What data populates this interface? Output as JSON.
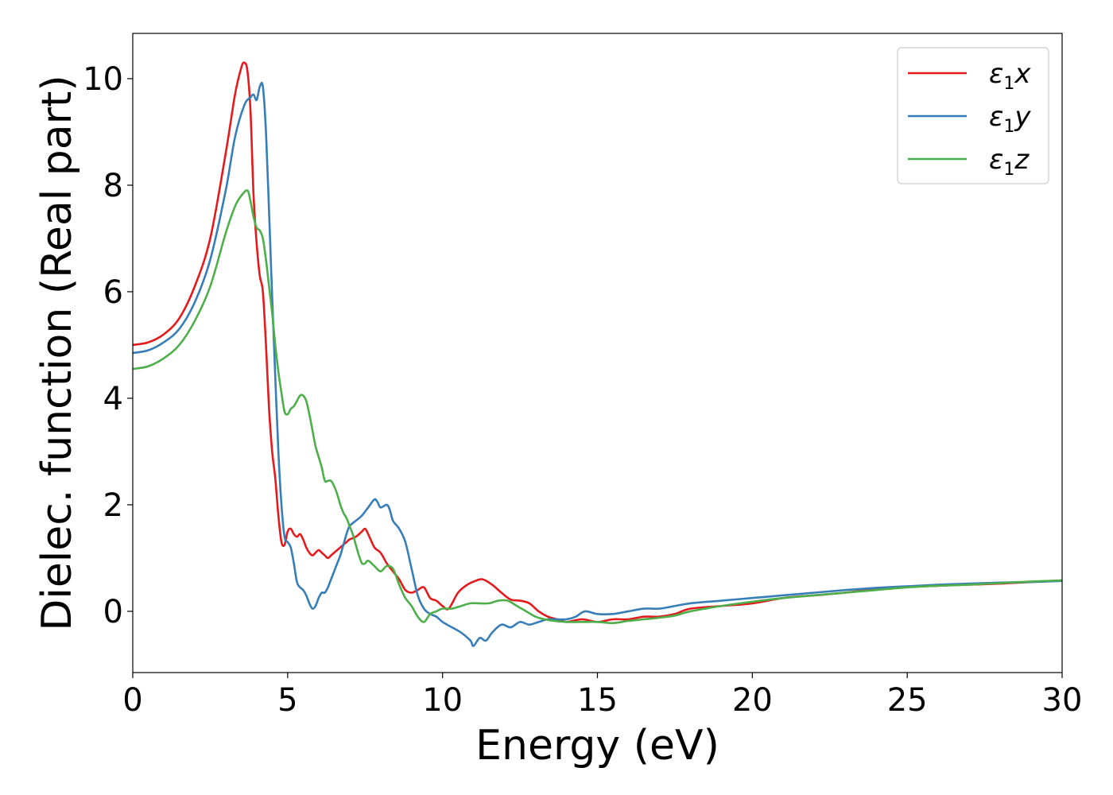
{
  "chart_data": {
    "type": "line",
    "title": "",
    "xlabel": "Energy (eV)",
    "ylabel": "Dielec. function (Real part)",
    "xlim": [
      0,
      30
    ],
    "ylim": [
      -1.15,
      10.85
    ],
    "xticks": [
      "0",
      "5",
      "10",
      "15",
      "20",
      "25",
      "30"
    ],
    "yticks": [
      "0",
      "2",
      "4",
      "6",
      "8",
      "10"
    ],
    "grid": false,
    "legend_position": "top-right",
    "series": [
      {
        "name": "ε₁x",
        "name_main": "ε",
        "name_sub": "1",
        "name_var": "x",
        "color": "#e41a1c",
        "x": [
          0,
          0.5,
          1.0,
          1.5,
          2.0,
          2.5,
          3.0,
          3.3,
          3.5,
          3.6,
          3.7,
          3.8,
          3.9,
          4.0,
          4.1,
          4.2,
          4.3,
          4.4,
          4.5,
          4.6,
          4.7,
          4.8,
          4.9,
          5.0,
          5.1,
          5.2,
          5.3,
          5.4,
          5.5,
          5.6,
          5.7,
          5.8,
          5.9,
          6.0,
          6.1,
          6.2,
          6.3,
          6.4,
          6.5,
          6.6,
          6.7,
          6.8,
          6.9,
          7.0,
          7.2,
          7.4,
          7.5,
          7.6,
          7.8,
          8.0,
          8.2,
          8.4,
          8.6,
          8.8,
          9.0,
          9.2,
          9.4,
          9.6,
          9.8,
          10.0,
          10.2,
          10.5,
          10.8,
          11.1,
          11.3,
          11.6,
          11.9,
          12.2,
          12.5,
          12.8,
          13.1,
          13.4,
          13.7,
          14.0,
          14.5,
          15.0,
          15.5,
          16.0,
          16.5,
          17.0,
          17.5,
          18.0,
          19.0,
          20.0,
          21.0,
          22.0,
          23.0,
          24.0,
          25.0,
          26.0,
          27.0,
          28.0,
          29.0,
          30.0
        ],
        "y": [
          5.0,
          5.05,
          5.2,
          5.5,
          6.1,
          7.0,
          8.6,
          9.7,
          10.2,
          10.3,
          10.15,
          9.4,
          7.8,
          6.9,
          6.3,
          6.0,
          5.0,
          3.8,
          3.0,
          2.5,
          1.8,
          1.3,
          1.25,
          1.5,
          1.55,
          1.45,
          1.4,
          1.45,
          1.35,
          1.2,
          1.1,
          1.05,
          1.1,
          1.15,
          1.1,
          1.05,
          1.0,
          1.05,
          1.1,
          1.15,
          1.2,
          1.25,
          1.3,
          1.35,
          1.4,
          1.5,
          1.55,
          1.45,
          1.2,
          1.1,
          0.9,
          0.75,
          0.6,
          0.4,
          0.35,
          0.4,
          0.45,
          0.25,
          0.2,
          0.1,
          0.05,
          0.35,
          0.5,
          0.58,
          0.6,
          0.5,
          0.35,
          0.22,
          0.2,
          0.15,
          0.0,
          -0.1,
          -0.15,
          -0.2,
          -0.15,
          -0.2,
          -0.15,
          -0.15,
          -0.1,
          -0.1,
          -0.05,
          0.05,
          0.1,
          0.15,
          0.25,
          0.3,
          0.35,
          0.42,
          0.46,
          0.48,
          0.5,
          0.52,
          0.55,
          0.58
        ]
      },
      {
        "name": "ε₁y",
        "name_main": "ε",
        "name_sub": "1",
        "name_var": "y",
        "color": "#377eb8",
        "x": [
          0,
          0.5,
          1.0,
          1.5,
          2.0,
          2.5,
          3.0,
          3.3,
          3.6,
          3.8,
          3.9,
          4.0,
          4.1,
          4.2,
          4.3,
          4.4,
          4.5,
          4.6,
          4.7,
          4.8,
          4.9,
          5.0,
          5.1,
          5.2,
          5.3,
          5.4,
          5.5,
          5.6,
          5.7,
          5.8,
          5.9,
          6.0,
          6.1,
          6.2,
          6.3,
          6.4,
          6.5,
          6.6,
          6.7,
          6.8,
          6.9,
          7.0,
          7.2,
          7.4,
          7.6,
          7.8,
          7.9,
          8.0,
          8.2,
          8.3,
          8.4,
          8.6,
          8.8,
          9.0,
          9.2,
          9.4,
          9.6,
          9.8,
          10.0,
          10.3,
          10.6,
          10.9,
          11.0,
          11.2,
          11.4,
          11.6,
          11.9,
          12.2,
          12.5,
          12.8,
          13.1,
          13.4,
          13.7,
          14.0,
          14.3,
          14.6,
          15.0,
          15.5,
          16.0,
          16.5,
          17.0,
          17.5,
          18.0,
          19.0,
          20.0,
          21.0,
          22.0,
          23.0,
          24.0,
          25.0,
          26.0,
          27.0,
          28.0,
          29.0,
          30.0
        ],
        "y": [
          4.85,
          4.9,
          5.05,
          5.3,
          5.8,
          6.6,
          7.9,
          8.9,
          9.5,
          9.65,
          9.7,
          9.6,
          9.85,
          9.85,
          9.0,
          7.5,
          5.9,
          4.4,
          3.0,
          2.0,
          1.4,
          1.3,
          1.2,
          0.9,
          0.55,
          0.45,
          0.4,
          0.3,
          0.15,
          0.05,
          0.1,
          0.25,
          0.35,
          0.35,
          0.45,
          0.6,
          0.75,
          0.9,
          1.05,
          1.25,
          1.45,
          1.6,
          1.7,
          1.8,
          1.95,
          2.1,
          2.05,
          1.95,
          2.0,
          1.9,
          1.7,
          1.55,
          1.3,
          0.8,
          0.3,
          0.05,
          -0.05,
          -0.1,
          -0.2,
          -0.3,
          -0.4,
          -0.55,
          -0.65,
          -0.5,
          -0.55,
          -0.4,
          -0.25,
          -0.3,
          -0.2,
          -0.25,
          -0.2,
          -0.15,
          -0.15,
          -0.15,
          -0.1,
          0.0,
          -0.05,
          -0.05,
          0.0,
          0.05,
          0.05,
          0.1,
          0.15,
          0.2,
          0.25,
          0.3,
          0.35,
          0.4,
          0.44,
          0.47,
          0.5,
          0.52,
          0.54,
          0.55,
          0.57
        ]
      },
      {
        "name": "ε₁z",
        "name_main": "ε",
        "name_sub": "1",
        "name_var": "z",
        "color": "#4daf4a",
        "x": [
          0,
          0.5,
          1.0,
          1.5,
          2.0,
          2.5,
          3.0,
          3.3,
          3.5,
          3.7,
          3.8,
          3.9,
          4.0,
          4.1,
          4.2,
          4.3,
          4.4,
          4.5,
          4.6,
          4.7,
          4.8,
          4.9,
          5.0,
          5.1,
          5.2,
          5.3,
          5.4,
          5.5,
          5.6,
          5.7,
          5.8,
          5.9,
          6.0,
          6.1,
          6.2,
          6.3,
          6.4,
          6.5,
          6.6,
          6.7,
          6.8,
          6.9,
          7.0,
          7.1,
          7.2,
          7.3,
          7.4,
          7.5,
          7.6,
          7.8,
          8.0,
          8.2,
          8.4,
          8.6,
          8.8,
          9.0,
          9.2,
          9.4,
          9.6,
          9.8,
          10.0,
          10.3,
          10.6,
          10.9,
          11.2,
          11.5,
          11.8,
          12.1,
          12.4,
          12.7,
          13.0,
          13.3,
          13.6,
          14.0,
          14.5,
          15.0,
          15.5,
          16.0,
          16.5,
          17.0,
          17.5,
          18.0,
          19.0,
          20.0,
          21.0,
          22.0,
          23.0,
          24.0,
          25.0,
          26.0,
          27.0,
          28.0,
          29.0,
          30.0
        ],
        "y": [
          4.55,
          4.6,
          4.75,
          5.0,
          5.45,
          6.1,
          7.1,
          7.6,
          7.8,
          7.9,
          7.7,
          7.4,
          7.2,
          7.15,
          7.0,
          6.6,
          6.1,
          5.6,
          5.0,
          4.5,
          4.1,
          3.75,
          3.7,
          3.8,
          3.85,
          3.95,
          4.05,
          4.05,
          3.95,
          3.7,
          3.4,
          3.1,
          2.9,
          2.7,
          2.45,
          2.45,
          2.45,
          2.35,
          2.2,
          2.0,
          1.85,
          1.75,
          1.6,
          1.45,
          1.25,
          1.05,
          0.9,
          0.9,
          0.95,
          0.85,
          0.75,
          0.85,
          0.8,
          0.5,
          0.25,
          0.1,
          -0.1,
          -0.2,
          -0.05,
          0.0,
          0.05,
          0.05,
          0.1,
          0.15,
          0.15,
          0.15,
          0.2,
          0.2,
          0.1,
          0.0,
          -0.1,
          -0.15,
          -0.18,
          -0.2,
          -0.2,
          -0.2,
          -0.22,
          -0.18,
          -0.15,
          -0.12,
          -0.08,
          0.0,
          0.1,
          0.18,
          0.25,
          0.3,
          0.35,
          0.4,
          0.45,
          0.48,
          0.5,
          0.53,
          0.56,
          0.58
        ]
      }
    ]
  }
}
